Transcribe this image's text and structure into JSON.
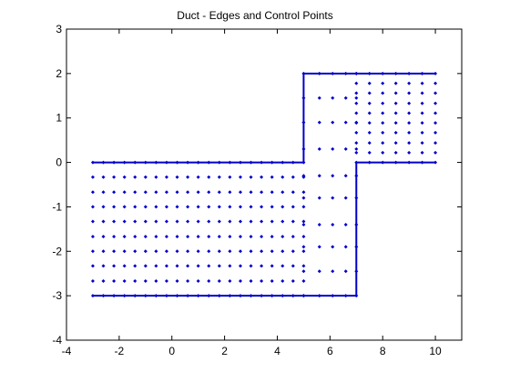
{
  "chart_data": {
    "type": "scatter",
    "title": "Duct - Edges and Control Points",
    "xlabel": "",
    "ylabel": "",
    "xlim": [
      -4,
      11
    ],
    "ylim": [
      -4,
      3
    ],
    "xticks": [
      -4,
      -2,
      0,
      2,
      4,
      6,
      8,
      10
    ],
    "yticks": [
      -4,
      -3,
      -2,
      -1,
      0,
      1,
      2,
      3
    ],
    "grid": false,
    "legend": false,
    "edge_color": "#0000cc",
    "point_color": "#0000cc",
    "edges": [
      {
        "name": "",
        "x": [
          -3,
          5,
          5,
          10
        ],
        "y": [
          0,
          0,
          2,
          2
        ]
      },
      {
        "name": "",
        "x": [
          -3,
          7,
          7,
          10
        ],
        "y": [
          -3,
          -3,
          0,
          0
        ]
      }
    ],
    "grids": [
      {
        "xs": [
          -3,
          -2.6,
          -2.2,
          -1.8,
          -1.4,
          -1.0,
          -0.6,
          -0.2,
          0.2,
          0.6,
          1.0,
          1.4,
          1.8,
          2.2,
          2.6,
          3.0,
          3.4,
          3.8,
          4.2,
          4.6,
          5.0
        ],
        "ys": [
          -3.0,
          -2.67,
          -2.33,
          -2.0,
          -1.67,
          -1.33,
          -1.0,
          -0.67,
          -0.33,
          0
        ]
      },
      {
        "xs": [
          5.0,
          5.6,
          6.1,
          6.6,
          7.0
        ],
        "ys": [
          -3.0,
          -2.45,
          -1.9,
          -1.4,
          -0.8,
          -0.3,
          0.3,
          0.9,
          1.45,
          2.0
        ]
      },
      {
        "xs": [
          7.0,
          7.5,
          8.0,
          8.5,
          9.0,
          9.5,
          10.0
        ],
        "ys": [
          0,
          0.22,
          0.44,
          0.67,
          0.89,
          1.11,
          1.33,
          1.56,
          1.78,
          2.0
        ]
      }
    ]
  }
}
